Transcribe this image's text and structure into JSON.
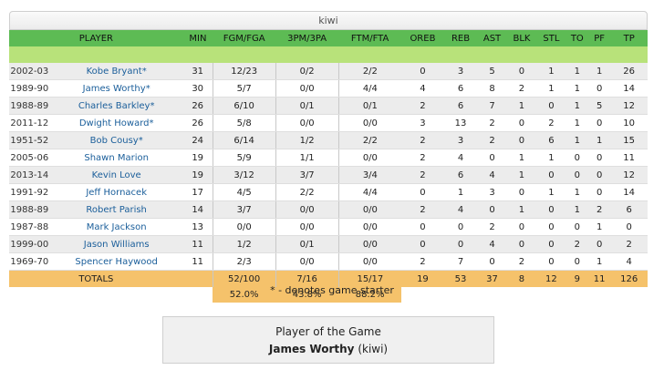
{
  "team_name": "kiwi",
  "columns": [
    "PLAYER",
    "MIN",
    "FGM/FGA",
    "3PM/3PA",
    "FTM/FTA",
    "OREB",
    "REB",
    "AST",
    "BLK",
    "STL",
    "TO",
    "PF",
    "TP"
  ],
  "rows": [
    {
      "year": "2002-03",
      "player": "Kobe Bryant*",
      "min": "31",
      "fg": "12/23",
      "tp3": "0/2",
      "ft": "2/2",
      "oreb": "0",
      "reb": "3",
      "ast": "5",
      "blk": "0",
      "stl": "1",
      "to": "1",
      "pf": "1",
      "pts": "26"
    },
    {
      "year": "1989-90",
      "player": "James Worthy*",
      "min": "30",
      "fg": "5/7",
      "tp3": "0/0",
      "ft": "4/4",
      "oreb": "4",
      "reb": "6",
      "ast": "8",
      "blk": "2",
      "stl": "1",
      "to": "1",
      "pf": "0",
      "pts": "14"
    },
    {
      "year": "1988-89",
      "player": "Charles Barkley*",
      "min": "26",
      "fg": "6/10",
      "tp3": "0/1",
      "ft": "0/1",
      "oreb": "2",
      "reb": "6",
      "ast": "7",
      "blk": "1",
      "stl": "0",
      "to": "1",
      "pf": "5",
      "pts": "12"
    },
    {
      "year": "2011-12",
      "player": "Dwight Howard*",
      "min": "26",
      "fg": "5/8",
      "tp3": "0/0",
      "ft": "0/0",
      "oreb": "3",
      "reb": "13",
      "ast": "2",
      "blk": "0",
      "stl": "2",
      "to": "1",
      "pf": "0",
      "pts": "10"
    },
    {
      "year": "1951-52",
      "player": "Bob Cousy*",
      "min": "24",
      "fg": "6/14",
      "tp3": "1/2",
      "ft": "2/2",
      "oreb": "2",
      "reb": "3",
      "ast": "2",
      "blk": "0",
      "stl": "6",
      "to": "1",
      "pf": "1",
      "pts": "15"
    },
    {
      "year": "2005-06",
      "player": "Shawn Marion",
      "min": "19",
      "fg": "5/9",
      "tp3": "1/1",
      "ft": "0/0",
      "oreb": "2",
      "reb": "4",
      "ast": "0",
      "blk": "1",
      "stl": "1",
      "to": "0",
      "pf": "0",
      "pts": "11"
    },
    {
      "year": "2013-14",
      "player": "Kevin Love",
      "min": "19",
      "fg": "3/12",
      "tp3": "3/7",
      "ft": "3/4",
      "oreb": "2",
      "reb": "6",
      "ast": "4",
      "blk": "1",
      "stl": "0",
      "to": "0",
      "pf": "0",
      "pts": "12"
    },
    {
      "year": "1991-92",
      "player": "Jeff Hornacek",
      "min": "17",
      "fg": "4/5",
      "tp3": "2/2",
      "ft": "4/4",
      "oreb": "0",
      "reb": "1",
      "ast": "3",
      "blk": "0",
      "stl": "1",
      "to": "1",
      "pf": "0",
      "pts": "14"
    },
    {
      "year": "1988-89",
      "player": "Robert Parish",
      "min": "14",
      "fg": "3/7",
      "tp3": "0/0",
      "ft": "0/0",
      "oreb": "2",
      "reb": "4",
      "ast": "0",
      "blk": "1",
      "stl": "0",
      "to": "1",
      "pf": "2",
      "pts": "6"
    },
    {
      "year": "1987-88",
      "player": "Mark Jackson",
      "min": "13",
      "fg": "0/0",
      "tp3": "0/0",
      "ft": "0/0",
      "oreb": "0",
      "reb": "0",
      "ast": "2",
      "blk": "0",
      "stl": "0",
      "to": "0",
      "pf": "1",
      "pts": "0"
    },
    {
      "year": "1999-00",
      "player": "Jason Williams",
      "min": "11",
      "fg": "1/2",
      "tp3": "0/1",
      "ft": "0/0",
      "oreb": "0",
      "reb": "0",
      "ast": "4",
      "blk": "0",
      "stl": "0",
      "to": "2",
      "pf": "0",
      "pts": "2"
    },
    {
      "year": "1969-70",
      "player": "Spencer Haywood",
      "min": "11",
      "fg": "2/3",
      "tp3": "0/0",
      "ft": "0/0",
      "oreb": "2",
      "reb": "7",
      "ast": "0",
      "blk": "2",
      "stl": "0",
      "to": "0",
      "pf": "1",
      "pts": "4"
    }
  ],
  "totals": {
    "label": "TOTALS",
    "fg": "52/100",
    "tp3": "7/16",
    "ft": "15/17",
    "oreb": "19",
    "reb": "53",
    "ast": "37",
    "blk": "8",
    "stl": "12",
    "to": "9",
    "pf": "11",
    "pts": "126"
  },
  "percentages": {
    "fg": "52.0%",
    "tp3": "43.8%",
    "ft": "88.2%"
  },
  "note": "* - denotes game starter",
  "potg": {
    "title": "Player of the Game",
    "player": "James Worthy",
    "team": "(kiwi)"
  },
  "colors": {
    "header_green": "#5dbb54",
    "light_green": "#b8e27a",
    "totals_orange": "#f5c26b",
    "link_blue": "#1a5e9a"
  }
}
